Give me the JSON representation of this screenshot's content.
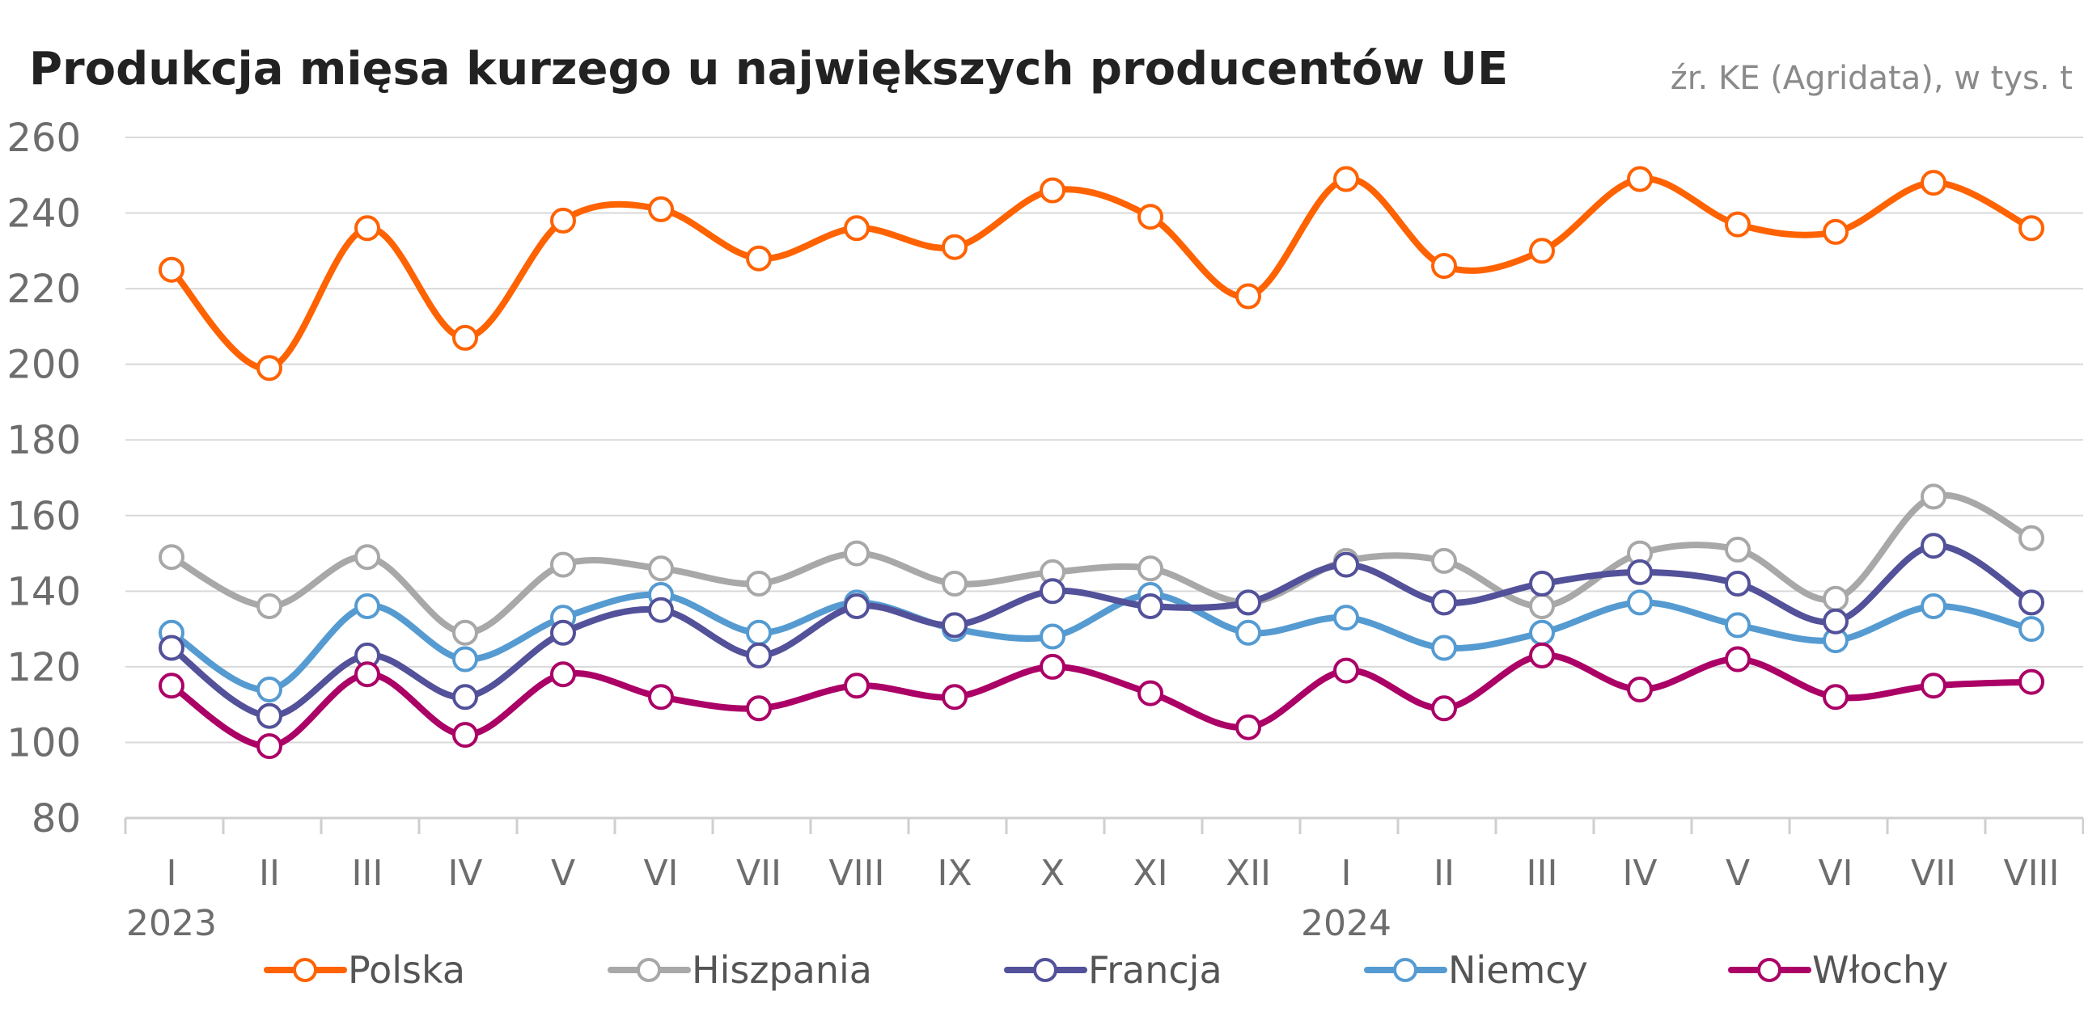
{
  "chart_data": {
    "type": "line",
    "title": "Produkcja mięsa kurzego u największych producentów UE",
    "source": "źr. KE (Agridata), w tys. t",
    "categories": [
      "I",
      "II",
      "III",
      "IV",
      "V",
      "VI",
      "VII",
      "VIII",
      "IX",
      "X",
      "XI",
      "XII",
      "I",
      "II",
      "III",
      "IV",
      "V",
      "VI",
      "VII",
      "VIII"
    ],
    "year_labels": [
      {
        "index": 0,
        "label": "2023"
      },
      {
        "index": 12,
        "label": "2024"
      }
    ],
    "ylim": [
      80,
      260
    ],
    "yticks": [
      80,
      100,
      120,
      140,
      160,
      180,
      200,
      220,
      240,
      260
    ],
    "xlabel": "",
    "ylabel": "",
    "grid": true,
    "legend_position": "bottom",
    "series": [
      {
        "name": "Polska",
        "color": "#ff6200",
        "values": [
          225,
          199,
          236,
          207,
          238,
          241,
          228,
          236,
          231,
          246,
          239,
          218,
          249,
          226,
          230,
          249,
          237,
          235,
          248,
          236
        ]
      },
      {
        "name": "Hiszpania",
        "color": "#a8a8a8",
        "values": [
          149,
          136,
          149,
          129,
          147,
          146,
          142,
          150,
          142,
          145,
          146,
          137,
          148,
          148,
          136,
          150,
          151,
          138,
          165,
          154
        ]
      },
      {
        "name": "Francja",
        "color": "#525199",
        "values": [
          125,
          107,
          123,
          112,
          129,
          135,
          123,
          136,
          131,
          140,
          136,
          137,
          147,
          137,
          142,
          145,
          142,
          132,
          152,
          137
        ]
      },
      {
        "name": "Niemcy",
        "color": "#559bd1",
        "values": [
          129,
          114,
          136,
          122,
          133,
          139,
          129,
          137,
          130,
          128,
          139,
          129,
          133,
          125,
          129,
          137,
          131,
          127,
          136,
          130
        ]
      },
      {
        "name": "Włochy",
        "color": "#ab0066",
        "values": [
          115,
          99,
          118,
          102,
          118,
          112,
          109,
          115,
          112,
          120,
          113,
          104,
          119,
          109,
          123,
          114,
          122,
          112,
          115,
          116
        ]
      }
    ]
  }
}
